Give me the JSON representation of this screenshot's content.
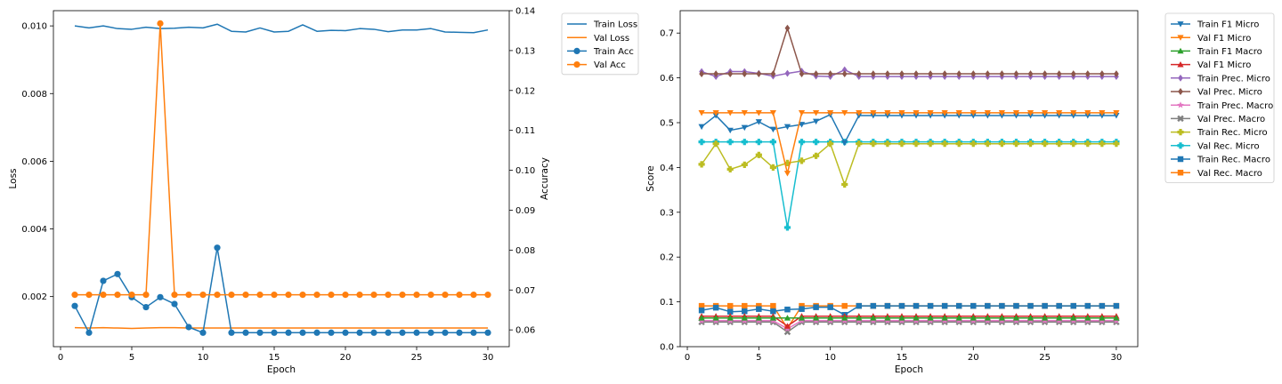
{
  "chart_data": [
    {
      "type": "line",
      "title": "",
      "xlabel": "Epoch",
      "ylabel": "Loss",
      "y2label": "Accuracy",
      "xlim": [
        -0.5,
        31.5
      ],
      "ylim": [
        0.00052,
        0.01045
      ],
      "y2lim": [
        0.0558,
        0.14
      ],
      "xticks": [
        0,
        5,
        10,
        15,
        20,
        25,
        30
      ],
      "yticks": [
        0.002,
        0.004,
        0.006,
        0.008,
        0.01
      ],
      "yticklabels": [
        "0.002",
        "0.004",
        "0.006",
        "0.008",
        "0.010"
      ],
      "y2ticks": [
        0.06,
        0.07,
        0.08,
        0.09,
        0.1,
        0.11,
        0.12,
        0.13,
        0.14
      ],
      "y2ticklabels": [
        "0.06",
        "0.07",
        "0.08",
        "0.09",
        "0.10",
        "0.11",
        "0.12",
        "0.13",
        "0.14"
      ],
      "x": [
        1,
        2,
        3,
        4,
        5,
        6,
        7,
        8,
        9,
        10,
        11,
        12,
        13,
        14,
        15,
        16,
        17,
        18,
        19,
        20,
        21,
        22,
        23,
        24,
        25,
        26,
        27,
        28,
        29,
        30
      ],
      "series": [
        {
          "name": "Train Loss",
          "axis": "left",
          "color": "#1f77b4",
          "marker": "none",
          "values": [
            0.01,
            0.00994,
            0.01,
            0.00992,
            0.0099,
            0.00996,
            0.00992,
            0.00993,
            0.00996,
            0.00994,
            0.01005,
            0.00984,
            0.00982,
            0.00994,
            0.00982,
            0.00984,
            0.01003,
            0.00984,
            0.00987,
            0.00986,
            0.00992,
            0.0099,
            0.00983,
            0.00988,
            0.00988,
            0.00992,
            0.00982,
            0.00981,
            0.0098,
            0.00988
          ]
        },
        {
          "name": "Val Loss",
          "axis": "left",
          "color": "#ff7f0e",
          "marker": "none",
          "values": [
            0.00108,
            0.00107,
            0.00108,
            0.00107,
            0.00106,
            0.00107,
            0.00108,
            0.00108,
            0.00107,
            0.00107,
            0.00107,
            0.00107,
            0.00107,
            0.00107,
            0.00107,
            0.00107,
            0.00107,
            0.00107,
            0.00107,
            0.00107,
            0.00107,
            0.00107,
            0.00107,
            0.00107,
            0.00107,
            0.00107,
            0.00107,
            0.00107,
            0.00107,
            0.00107
          ]
        },
        {
          "name": "Train Acc",
          "axis": "right",
          "color": "#1f77b4",
          "marker": "circle",
          "values": [
            0.066,
            0.0593,
            0.0723,
            0.074,
            0.0682,
            0.0657,
            0.0682,
            0.0665,
            0.0607,
            0.0593,
            0.0806,
            0.0593,
            0.0593,
            0.0593,
            0.0593,
            0.0593,
            0.0593,
            0.0593,
            0.0593,
            0.0593,
            0.0593,
            0.0593,
            0.0593,
            0.0593,
            0.0593,
            0.0593,
            0.0593,
            0.0593,
            0.0593,
            0.0593
          ]
        },
        {
          "name": "Val Acc",
          "axis": "right",
          "color": "#ff7f0e",
          "marker": "circle",
          "values": [
            0.0688,
            0.0688,
            0.0688,
            0.0688,
            0.0688,
            0.0688,
            0.1368,
            0.0688,
            0.0688,
            0.0688,
            0.0688,
            0.0688,
            0.0688,
            0.0688,
            0.0688,
            0.0688,
            0.0688,
            0.0688,
            0.0688,
            0.0688,
            0.0688,
            0.0688,
            0.0688,
            0.0688,
            0.0688,
            0.0688,
            0.0688,
            0.0688,
            0.0688,
            0.0688
          ]
        }
      ],
      "legend": [
        "Train Loss",
        "Val Loss",
        "Train Acc",
        "Val Acc"
      ],
      "legend_position": "outside-top-right"
    },
    {
      "type": "line",
      "title": "",
      "xlabel": "Epoch",
      "ylabel": "Score",
      "xlim": [
        -0.5,
        31.5
      ],
      "ylim": [
        0.0,
        0.75
      ],
      "xticks": [
        0,
        5,
        10,
        15,
        20,
        25,
        30
      ],
      "yticks": [
        0.0,
        0.1,
        0.2,
        0.3,
        0.4,
        0.5,
        0.6,
        0.7
      ],
      "yticklabels": [
        "0.0",
        "0.1",
        "0.2",
        "0.3",
        "0.4",
        "0.5",
        "0.6",
        "0.7"
      ],
      "x": [
        1,
        2,
        3,
        4,
        5,
        6,
        7,
        8,
        9,
        10,
        11,
        12,
        13,
        14,
        15,
        16,
        17,
        18,
        19,
        20,
        21,
        22,
        23,
        24,
        25,
        26,
        27,
        28,
        29,
        30
      ],
      "series": [
        {
          "name": "Val Rec. Macro",
          "color": "#ff7f0e",
          "marker": "square",
          "values": [
            0.091,
            0.091,
            0.091,
            0.091,
            0.091,
            0.091,
            0.041,
            0.091,
            0.091,
            0.091,
            0.091,
            0.091,
            0.091,
            0.091,
            0.091,
            0.091,
            0.091,
            0.091,
            0.091,
            0.091,
            0.091,
            0.091,
            0.091,
            0.091,
            0.091,
            0.091,
            0.091,
            0.091,
            0.091,
            0.091
          ]
        },
        {
          "name": "Train Rec. Macro",
          "color": "#1f77b4",
          "marker": "square",
          "values": [
            0.081,
            0.087,
            0.078,
            0.079,
            0.084,
            0.079,
            0.083,
            0.084,
            0.088,
            0.088,
            0.071,
            0.091,
            0.091,
            0.091,
            0.091,
            0.091,
            0.091,
            0.091,
            0.091,
            0.091,
            0.091,
            0.091,
            0.091,
            0.091,
            0.091,
            0.091,
            0.091,
            0.091,
            0.091,
            0.091
          ]
        },
        {
          "name": "Val Rec. Micro",
          "color": "#17becf",
          "marker": "plus",
          "values": [
            0.457,
            0.457,
            0.457,
            0.457,
            0.457,
            0.457,
            0.266,
            0.457,
            0.457,
            0.457,
            0.457,
            0.457,
            0.457,
            0.457,
            0.457,
            0.457,
            0.457,
            0.457,
            0.457,
            0.457,
            0.457,
            0.457,
            0.457,
            0.457,
            0.457,
            0.457,
            0.457,
            0.457,
            0.457,
            0.457
          ]
        },
        {
          "name": "Train Rec. Micro",
          "color": "#bcbd22",
          "marker": "plus",
          "values": [
            0.407,
            0.453,
            0.396,
            0.406,
            0.428,
            0.4,
            0.41,
            0.415,
            0.426,
            0.453,
            0.362,
            0.453,
            0.453,
            0.453,
            0.453,
            0.453,
            0.453,
            0.453,
            0.453,
            0.453,
            0.453,
            0.453,
            0.453,
            0.453,
            0.453,
            0.453,
            0.453,
            0.453,
            0.453,
            0.453
          ]
        },
        {
          "name": "Val Prec. Macro",
          "color": "#7f7f7f",
          "marker": "x",
          "values": [
            0.055,
            0.055,
            0.055,
            0.055,
            0.055,
            0.055,
            0.033,
            0.055,
            0.055,
            0.055,
            0.055,
            0.055,
            0.055,
            0.055,
            0.055,
            0.055,
            0.055,
            0.055,
            0.055,
            0.055,
            0.055,
            0.055,
            0.055,
            0.055,
            0.055,
            0.055,
            0.055,
            0.055,
            0.055,
            0.055
          ]
        },
        {
          "name": "Train Prec. Macro",
          "color": "#e377c2",
          "marker": "star",
          "values": [
            0.058,
            0.058,
            0.058,
            0.058,
            0.058,
            0.058,
            0.04,
            0.058,
            0.058,
            0.058,
            0.058,
            0.058,
            0.058,
            0.058,
            0.058,
            0.058,
            0.058,
            0.058,
            0.058,
            0.058,
            0.058,
            0.058,
            0.058,
            0.058,
            0.058,
            0.058,
            0.058,
            0.058,
            0.058,
            0.058
          ]
        },
        {
          "name": "Val F1 Micro",
          "color": "#d62728",
          "marker": "triangle-up",
          "values": [
            0.068,
            0.068,
            0.068,
            0.068,
            0.068,
            0.068,
            0.046,
            0.068,
            0.068,
            0.068,
            0.068,
            0.068,
            0.068,
            0.068,
            0.068,
            0.068,
            0.068,
            0.068,
            0.068,
            0.068,
            0.068,
            0.068,
            0.068,
            0.068,
            0.068,
            0.068,
            0.068,
            0.068,
            0.068,
            0.068
          ]
        },
        {
          "name": "Train F1 Macro",
          "color": "#2ca02c",
          "marker": "triangle-up",
          "values": [
            0.064,
            0.064,
            0.064,
            0.064,
            0.064,
            0.064,
            0.064,
            0.064,
            0.064,
            0.064,
            0.064,
            0.064,
            0.064,
            0.064,
            0.064,
            0.064,
            0.064,
            0.064,
            0.064,
            0.064,
            0.064,
            0.064,
            0.064,
            0.064,
            0.064,
            0.064,
            0.064,
            0.064,
            0.064,
            0.064
          ]
        },
        {
          "name": "Train F1 Micro",
          "color": "#1f77b4",
          "marker": "triangle-down",
          "values": [
            0.491,
            0.516,
            0.483,
            0.489,
            0.502,
            0.485,
            0.491,
            0.496,
            0.503,
            0.518,
            0.455,
            0.516,
            0.516,
            0.516,
            0.516,
            0.516,
            0.516,
            0.516,
            0.516,
            0.516,
            0.516,
            0.516,
            0.516,
            0.516,
            0.516,
            0.516,
            0.516,
            0.516,
            0.516,
            0.516
          ]
        },
        {
          "name": "Val F1 Micro",
          "color": "#ff7f0e",
          "marker": "triangle-down",
          "values": [
            0.522,
            0.522,
            0.522,
            0.522,
            0.522,
            0.522,
            0.387,
            0.522,
            0.522,
            0.522,
            0.522,
            0.522,
            0.522,
            0.522,
            0.522,
            0.522,
            0.522,
            0.522,
            0.522,
            0.522,
            0.522,
            0.522,
            0.522,
            0.522,
            0.522,
            0.522,
            0.522,
            0.522,
            0.522,
            0.522
          ]
        },
        {
          "name": "Train Prec. Micro",
          "color": "#9467bd",
          "marker": "diamond",
          "values": [
            0.614,
            0.603,
            0.614,
            0.614,
            0.61,
            0.604,
            0.61,
            0.615,
            0.604,
            0.603,
            0.618,
            0.603,
            0.603,
            0.603,
            0.603,
            0.603,
            0.603,
            0.603,
            0.603,
            0.603,
            0.603,
            0.603,
            0.603,
            0.603,
            0.603,
            0.603,
            0.603,
            0.603,
            0.603,
            0.603
          ]
        },
        {
          "name": "Val Prec. Micro",
          "color": "#8c564b",
          "marker": "diamond",
          "values": [
            0.609,
            0.609,
            0.609,
            0.609,
            0.609,
            0.609,
            0.711,
            0.609,
            0.609,
            0.609,
            0.609,
            0.609,
            0.609,
            0.609,
            0.609,
            0.609,
            0.609,
            0.609,
            0.609,
            0.609,
            0.609,
            0.609,
            0.609,
            0.609,
            0.609,
            0.609,
            0.609,
            0.609,
            0.609,
            0.609
          ]
        }
      ],
      "legend": [
        {
          "name": "Train F1 Micro",
          "color": "#1f77b4",
          "marker": "triangle-down"
        },
        {
          "name": "Val F1 Micro",
          "color": "#ff7f0e",
          "marker": "triangle-down"
        },
        {
          "name": "Train F1 Macro",
          "color": "#2ca02c",
          "marker": "triangle-up"
        },
        {
          "name": "Val F1 Micro",
          "color": "#d62728",
          "marker": "triangle-up"
        },
        {
          "name": "Train Prec. Micro",
          "color": "#9467bd",
          "marker": "diamond"
        },
        {
          "name": "Val Prec. Micro",
          "color": "#8c564b",
          "marker": "diamond"
        },
        {
          "name": "Train Prec. Macro",
          "color": "#e377c2",
          "marker": "star"
        },
        {
          "name": "Val Prec. Macro",
          "color": "#7f7f7f",
          "marker": "x"
        },
        {
          "name": "Train Rec. Micro",
          "color": "#bcbd22",
          "marker": "plus"
        },
        {
          "name": "Val Rec. Micro",
          "color": "#17becf",
          "marker": "plus"
        },
        {
          "name": "Train Rec. Macro",
          "color": "#1f77b4",
          "marker": "square"
        },
        {
          "name": "Val Rec. Macro",
          "color": "#ff7f0e",
          "marker": "square"
        }
      ],
      "legend_position": "outside-top-right"
    }
  ]
}
